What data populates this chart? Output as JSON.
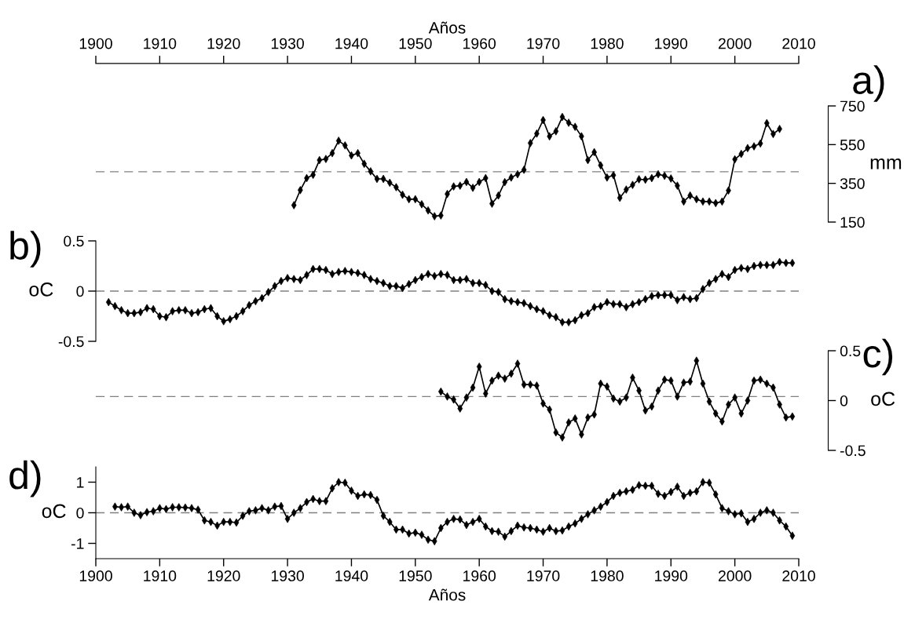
{
  "chart_data": [
    {
      "type": "line",
      "title": "a)",
      "xlabel": "Años",
      "ylabel": "mm",
      "xlim": [
        1900,
        2010
      ],
      "xticks": [
        1900,
        1910,
        1920,
        1930,
        1940,
        1950,
        1960,
        1970,
        1980,
        1990,
        2000,
        2010
      ],
      "ylim": [
        150,
        750
      ],
      "yticks": [
        150,
        350,
        550,
        750
      ],
      "marker": "diamond",
      "line_style": "solid",
      "series": [
        {
          "color": "#000000",
          "x": [
            1931,
            1932,
            1933,
            1934,
            1935,
            1936,
            1937,
            1938,
            1939,
            1940,
            1941,
            1942,
            1943,
            1944,
            1945,
            1946,
            1947,
            1948,
            1949,
            1950,
            1951,
            1952,
            1953,
            1954,
            1955,
            1956,
            1957,
            1958,
            1959,
            1960,
            1961,
            1962,
            1963,
            1964,
            1965,
            1966,
            1967,
            1968,
            1969,
            1970,
            1971,
            1972,
            1973,
            1974,
            1975,
            1976,
            1977,
            1978,
            1979,
            1980,
            1981,
            1982,
            1983,
            1984,
            1985,
            1986,
            1987,
            1988,
            1989,
            1990,
            1991,
            1992,
            1993,
            1994,
            1995,
            1996,
            1997,
            1998,
            1999,
            2000,
            2001,
            2002,
            2003,
            2004,
            2005,
            2006,
            2007
          ],
          "values": [
            237,
            315,
            377,
            394,
            470,
            476,
            506,
            570,
            546,
            494,
            506,
            451,
            412,
            373,
            373,
            353,
            330,
            291,
            268,
            268,
            242,
            210,
            180,
            184,
            295,
            334,
            338,
            357,
            327,
            357,
            377,
            245,
            287,
            356,
            380,
            397,
            420,
            558,
            607,
            677,
            593,
            619,
            693,
            663,
            642,
            593,
            470,
            511,
            443,
            380,
            392,
            275,
            318,
            342,
            371,
            369,
            377,
            397,
            389,
            375,
            338,
            256,
            287,
            268,
            256,
            256,
            248,
            256,
            313,
            474,
            502,
            532,
            541,
            556,
            661,
            605,
            631
          ]
        }
      ],
      "ref_lines": [
        {
          "axis": "y",
          "value": 410,
          "color": "#808080",
          "line_style": "dashed"
        }
      ]
    },
    {
      "type": "line",
      "title": "b)",
      "ylabel": "oC",
      "xlim": [
        1900,
        2010
      ],
      "ylim": [
        -0.5,
        0.5
      ],
      "yticks": [
        -0.5,
        0,
        0.5
      ],
      "tick_labels": "y",
      "marker": "diamond",
      "line_style": "solid",
      "series": [
        {
          "color": "#000000",
          "x": [
            1902,
            1903,
            1904,
            1905,
            1906,
            1907,
            1908,
            1909,
            1910,
            1911,
            1912,
            1913,
            1914,
            1915,
            1916,
            1917,
            1918,
            1919,
            1920,
            1921,
            1922,
            1923,
            1924,
            1925,
            1926,
            1927,
            1928,
            1929,
            1930,
            1931,
            1932,
            1933,
            1934,
            1935,
            1936,
            1937,
            1938,
            1939,
            1940,
            1941,
            1942,
            1943,
            1944,
            1945,
            1946,
            1947,
            1948,
            1949,
            1950,
            1951,
            1952,
            1953,
            1954,
            1955,
            1956,
            1957,
            1958,
            1959,
            1960,
            1961,
            1962,
            1963,
            1964,
            1965,
            1966,
            1967,
            1968,
            1969,
            1970,
            1971,
            1972,
            1973,
            1974,
            1975,
            1976,
            1977,
            1978,
            1979,
            1980,
            1981,
            1982,
            1983,
            1984,
            1985,
            1986,
            1987,
            1988,
            1989,
            1990,
            1991,
            1992,
            1993,
            1994,
            1995,
            1996,
            1997,
            1998,
            1999,
            2000,
            2001,
            2002,
            2003,
            2004,
            2005,
            2006,
            2007,
            2008,
            2009
          ],
          "values": [
            -0.11,
            -0.15,
            -0.19,
            -0.22,
            -0.22,
            -0.21,
            -0.17,
            -0.18,
            -0.25,
            -0.26,
            -0.2,
            -0.19,
            -0.19,
            -0.22,
            -0.21,
            -0.18,
            -0.17,
            -0.25,
            -0.3,
            -0.28,
            -0.25,
            -0.2,
            -0.14,
            -0.1,
            -0.07,
            -0.01,
            0.05,
            0.1,
            0.13,
            0.12,
            0.11,
            0.16,
            0.22,
            0.22,
            0.21,
            0.17,
            0.19,
            0.2,
            0.19,
            0.18,
            0.16,
            0.12,
            0.1,
            0.08,
            0.05,
            0.05,
            0.03,
            0.07,
            0.11,
            0.14,
            0.17,
            0.15,
            0.17,
            0.16,
            0.11,
            0.11,
            0.12,
            0.08,
            0.08,
            0.06,
            0,
            -0.01,
            -0.08,
            -0.1,
            -0.11,
            -0.12,
            -0.15,
            -0.18,
            -0.2,
            -0.24,
            -0.26,
            -0.31,
            -0.31,
            -0.29,
            -0.24,
            -0.22,
            -0.16,
            -0.15,
            -0.11,
            -0.13,
            -0.13,
            -0.16,
            -0.13,
            -0.11,
            -0.08,
            -0.05,
            -0.04,
            -0.04,
            -0.04,
            -0.09,
            -0.06,
            -0.08,
            -0.07,
            0.02,
            0.08,
            0.12,
            0.17,
            0.14,
            0.21,
            0.23,
            0.22,
            0.25,
            0.26,
            0.26,
            0.26,
            0.29,
            0.28,
            0.28
          ]
        }
      ],
      "ref_lines": [
        {
          "axis": "y",
          "value": 0,
          "color": "#808080",
          "line_style": "dashed"
        }
      ]
    },
    {
      "type": "line",
      "title": "c)",
      "ylabel": "oC",
      "xlim": [
        1900,
        2010
      ],
      "ylim": [
        -0.5,
        0.5
      ],
      "yticks": [
        -0.5,
        0,
        0.5
      ],
      "tick_labels": "y",
      "marker": "diamond",
      "line_style": "solid",
      "series": [
        {
          "color": "#000000",
          "x": [
            1954,
            1955,
            1956,
            1957,
            1958,
            1959,
            1960,
            1961,
            1962,
            1963,
            1964,
            1965,
            1966,
            1967,
            1968,
            1969,
            1970,
            1971,
            1972,
            1973,
            1974,
            1975,
            1976,
            1977,
            1978,
            1979,
            1980,
            1981,
            1982,
            1983,
            1984,
            1985,
            1986,
            1987,
            1988,
            1989,
            1990,
            1991,
            1992,
            1993,
            1994,
            1995,
            1996,
            1997,
            1998,
            1999,
            2000,
            2001,
            2002,
            2003,
            2004,
            2005,
            2006,
            2007,
            2008,
            2009
          ],
          "values": [
            0.09,
            0.04,
            0.01,
            -0.08,
            0.03,
            0.13,
            0.34,
            0.07,
            0.2,
            0.25,
            0.22,
            0.27,
            0.37,
            0.16,
            0.16,
            0.15,
            -0.03,
            -0.09,
            -0.32,
            -0.37,
            -0.22,
            -0.18,
            -0.34,
            -0.17,
            -0.14,
            0.17,
            0.14,
            0.02,
            -0.01,
            0.03,
            0.23,
            0.1,
            -0.1,
            -0.06,
            0.1,
            0.21,
            0.2,
            0.04,
            0.18,
            0.19,
            0.4,
            0.17,
            -0.01,
            -0.13,
            -0.21,
            -0.04,
            0.03,
            -0.13,
            0,
            0.2,
            0.21,
            0.17,
            0.13,
            -0.04,
            -0.17,
            -0.16
          ]
        }
      ],
      "ref_lines": [
        {
          "axis": "y",
          "value": 0.04,
          "color": "#808080",
          "line_style": "dashed"
        }
      ]
    },
    {
      "type": "line",
      "title": "d)",
      "xlabel": "Años",
      "ylabel": "oC",
      "xlim": [
        1900,
        2010
      ],
      "xticks": [
        1900,
        1910,
        1920,
        1930,
        1940,
        1950,
        1960,
        1970,
        1980,
        1990,
        2000,
        2010
      ],
      "ylim": [
        -1.5,
        1.5
      ],
      "yticks": [
        -1,
        0,
        1
      ],
      "marker": "diamond",
      "line_style": "solid",
      "series": [
        {
          "color": "#000000",
          "x": [
            1903,
            1904,
            1905,
            1906,
            1907,
            1908,
            1909,
            1910,
            1911,
            1912,
            1913,
            1914,
            1915,
            1916,
            1917,
            1918,
            1919,
            1920,
            1921,
            1922,
            1923,
            1924,
            1925,
            1926,
            1927,
            1928,
            1929,
            1930,
            1931,
            1932,
            1933,
            1934,
            1935,
            1936,
            1937,
            1938,
            1939,
            1940,
            1941,
            1942,
            1943,
            1944,
            1945,
            1946,
            1947,
            1948,
            1949,
            1950,
            1951,
            1952,
            1953,
            1954,
            1955,
            1956,
            1957,
            1958,
            1959,
            1960,
            1961,
            1962,
            1963,
            1964,
            1965,
            1966,
            1967,
            1968,
            1969,
            1970,
            1971,
            1972,
            1973,
            1974,
            1975,
            1976,
            1977,
            1978,
            1979,
            1980,
            1981,
            1982,
            1983,
            1984,
            1985,
            1986,
            1987,
            1988,
            1989,
            1990,
            1991,
            1992,
            1993,
            1994,
            1995,
            1996,
            1997,
            1998,
            1999,
            2000,
            2001,
            2002,
            2003,
            2004,
            2005,
            2006,
            2007,
            2008,
            2009
          ],
          "values": [
            0.2,
            0.18,
            0.2,
            0,
            -0.08,
            0.02,
            0.05,
            0.15,
            0.12,
            0.18,
            0.18,
            0.17,
            0.15,
            0.1,
            -0.25,
            -0.3,
            -0.42,
            -0.3,
            -0.3,
            -0.32,
            -0.1,
            0.05,
            0.08,
            0.15,
            0.08,
            0.2,
            0.22,
            -0.2,
            0,
            0.15,
            0.35,
            0.45,
            0.38,
            0.38,
            0.8,
            1,
            0.98,
            0.72,
            0.55,
            0.6,
            0.58,
            0.42,
            -0.1,
            -0.3,
            -0.55,
            -0.55,
            -0.68,
            -0.65,
            -0.72,
            -0.88,
            -0.93,
            -0.5,
            -0.3,
            -0.2,
            -0.22,
            -0.4,
            -0.3,
            -0.2,
            -0.45,
            -0.6,
            -0.62,
            -0.78,
            -0.6,
            -0.42,
            -0.48,
            -0.5,
            -0.55,
            -0.62,
            -0.5,
            -0.6,
            -0.58,
            -0.45,
            -0.35,
            -0.2,
            -0.05,
            0.08,
            0.2,
            0.35,
            0.55,
            0.65,
            0.7,
            0.75,
            0.9,
            0.88,
            0.88,
            0.62,
            0.55,
            0.68,
            0.85,
            0.55,
            0.65,
            0.7,
            1,
            0.98,
            0.6,
            0.15,
            0.05,
            -0.05,
            -0.02,
            -0.3,
            -0.2,
            0,
            0.08,
            0,
            -0.25,
            -0.45,
            -0.75
          ]
        }
      ],
      "ref_lines": [
        {
          "axis": "y",
          "value": 0,
          "color": "#808080",
          "line_style": "dashed"
        }
      ]
    }
  ]
}
